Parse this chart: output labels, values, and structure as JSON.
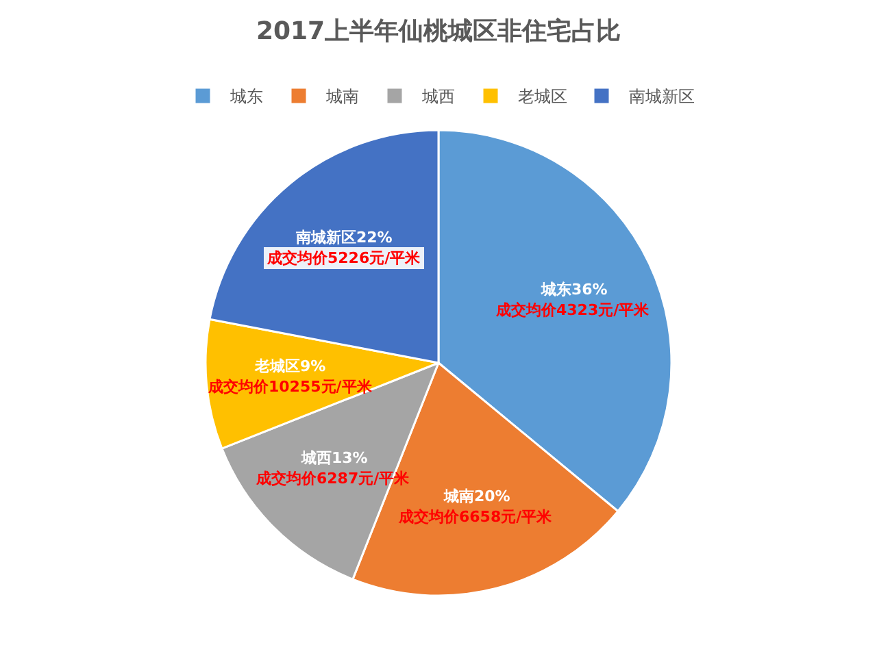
{
  "chart_data": {
    "type": "pie",
    "title": "2017上半年仙桃城区非住宅占比",
    "categories": [
      "城东",
      "城南",
      "城西",
      "老城区",
      "南城新区"
    ],
    "values": [
      36,
      20,
      13,
      9,
      22
    ],
    "colors": [
      "#5b9bd5",
      "#ed7d31",
      "#a5a5a5",
      "#ffc000",
      "#4472c4"
    ],
    "value_labels": [
      "城东36%\n成交均价4323元/平米",
      "城南20%\n成交均价6658元/平米",
      "城西13%\n成交均价6287元/平米",
      "老城区9%\n成交均价10255元/平米",
      "南城新区22%\n成交均价5226元/平米"
    ],
    "legend": "top"
  }
}
